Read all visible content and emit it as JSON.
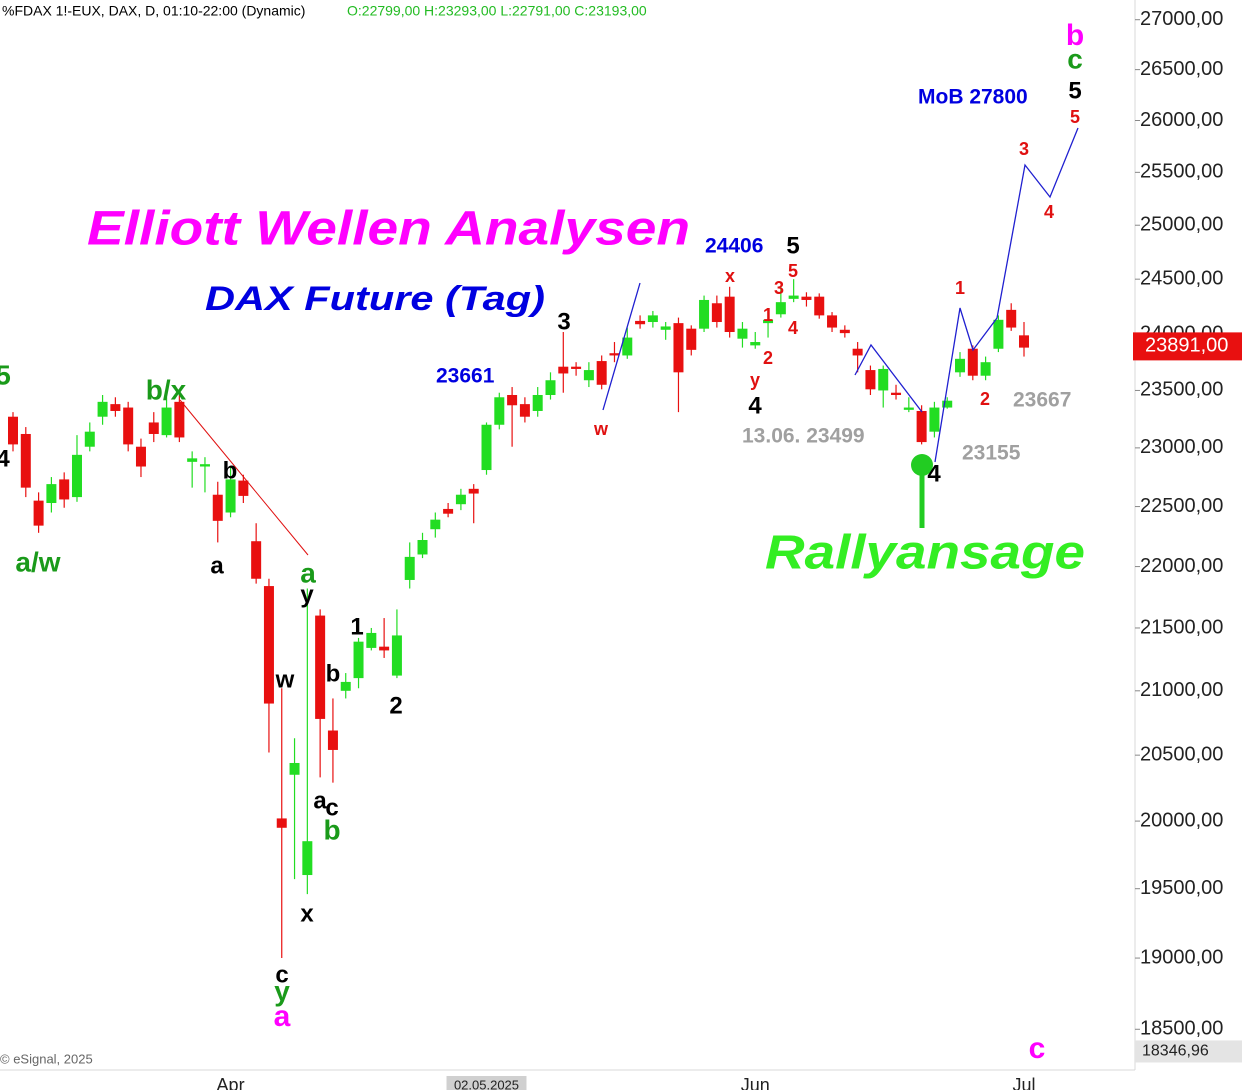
{
  "chart_data": {
    "type": "candlestick",
    "header": {
      "symbol": "%FDAX 1!-EUX, DAX, D, 01:10-22:00 (Dynamic)",
      "ohlc": "O:22799,00 H:23293,00 L:22791,00 C:23193,00"
    },
    "copyright": "© eSignal, 2025",
    "log_scale": true,
    "grid": false,
    "up_color": "#22dd22",
    "down_color": "#e81010",
    "ylim": [
      18220,
      27200
    ],
    "yticks": [
      {
        "value": 18500,
        "label": "18500,00"
      },
      {
        "value": 19000,
        "label": "19000,00"
      },
      {
        "value": 19500,
        "label": "19500,00"
      },
      {
        "value": 20000,
        "label": "20000,00"
      },
      {
        "value": 20500,
        "label": "20500,00"
      },
      {
        "value": 21000,
        "label": "21000,00"
      },
      {
        "value": 21500,
        "label": "21500,00"
      },
      {
        "value": 22000,
        "label": "22000,00"
      },
      {
        "value": 22500,
        "label": "22500,00"
      },
      {
        "value": 23000,
        "label": "23000,00"
      },
      {
        "value": 23500,
        "label": "23500,00"
      },
      {
        "value": 24000,
        "label": "24000,00"
      },
      {
        "value": 24500,
        "label": "24500,00"
      },
      {
        "value": 25000,
        "label": "25000,00"
      },
      {
        "value": 25500,
        "label": "25500,00"
      },
      {
        "value": 26000,
        "label": "26000,00"
      },
      {
        "value": 26500,
        "label": "26500,00"
      },
      {
        "value": 27000,
        "label": "27000,00"
      }
    ],
    "last_price": {
      "value": 23891,
      "label": "23891,00"
    },
    "cursor_price": {
      "value": 18346.96,
      "label": "18346,96"
    },
    "categories": [
      null,
      null,
      null,
      null,
      null,
      null,
      null,
      null,
      null,
      null,
      null,
      null,
      null,
      null,
      null,
      null,
      null,
      "Apr",
      null,
      null,
      null,
      null,
      null,
      null,
      null,
      null,
      null,
      null,
      null,
      null,
      null,
      null,
      null,
      null,
      null,
      null,
      null,
      "02.05.2025",
      null,
      null,
      null,
      null,
      null,
      null,
      null,
      null,
      null,
      null,
      null,
      null,
      null,
      null,
      null,
      null,
      null,
      null,
      null,
      null,
      "Jun",
      null,
      null,
      null,
      null,
      null,
      null,
      null,
      null,
      null,
      null,
      null,
      null,
      null,
      null,
      null,
      null,
      null,
      null,
      null,
      null,
      "Jul"
    ],
    "open": [
      23270,
      23120,
      22550,
      22530,
      22730,
      22580,
      23010,
      23270,
      23380,
      23350,
      23010,
      23220,
      23110,
      23400,
      22880,
      22840,
      22600,
      22450,
      22720,
      22210,
      21840,
      20020,
      20350,
      19600,
      21600,
      20690,
      21000,
      21100,
      21340,
      21350,
      21120,
      21890,
      22100,
      22310,
      22480,
      22520,
      22650,
      22810,
      23200,
      23460,
      23380,
      23320,
      23460,
      23710,
      23710,
      23590,
      23760,
      23830,
      23810,
      24120,
      24110,
      24040,
      24100,
      24050,
      24050,
      24280,
      24340,
      23960,
      23900,
      24100,
      24180,
      24320,
      24340,
      24340,
      24170,
      24040,
      23870,
      23680,
      23500,
      23480,
      23330,
      23320,
      23140,
      23350,
      23660,
      23870,
      23630,
      23870,
      24220,
      23990
    ],
    "high": [
      23310,
      23180,
      22620,
      22750,
      22790,
      23110,
      23220,
      23460,
      23440,
      23400,
      23080,
      23310,
      23440,
      23460,
      22970,
      22920,
      22710,
      22840,
      22770,
      22360,
      21900,
      21020,
      20630,
      21820,
      21650,
      20940,
      21140,
      21420,
      21500,
      21580,
      21650,
      22200,
      22280,
      22450,
      22530,
      22650,
      22690,
      23220,
      23480,
      23530,
      23440,
      23530,
      23660,
      24020,
      23750,
      23750,
      23810,
      23930,
      24060,
      24170,
      24210,
      24110,
      24150,
      24080,
      24350,
      24350,
      24430,
      24110,
      24020,
      24200,
      24430,
      24500,
      24380,
      24370,
      24200,
      24080,
      23930,
      23720,
      23720,
      23550,
      23440,
      23370,
      23400,
      23440,
      23840,
      23900,
      23800,
      24170,
      24280,
      24110
    ],
    "low": [
      22970,
      22580,
      22280,
      22450,
      22490,
      22540,
      22970,
      23200,
      23270,
      22970,
      22750,
      23050,
      23090,
      23050,
      22660,
      22620,
      22200,
      22410,
      22530,
      21860,
      20520,
      19000,
      19570,
      19460,
      20330,
      20290,
      20940,
      21020,
      21320,
      21260,
      21100,
      21820,
      22070,
      22240,
      22410,
      22470,
      22360,
      22770,
      23160,
      23010,
      23220,
      23270,
      23420,
      23480,
      23630,
      23530,
      23510,
      23750,
      23780,
      24050,
      24060,
      23950,
      23310,
      23810,
      24020,
      24060,
      23970,
      23880,
      23870,
      23970,
      24150,
      24290,
      24250,
      24140,
      24020,
      23970,
      23660,
      23460,
      23350,
      23420,
      23310,
      23030,
      23090,
      23340,
      23620,
      23590,
      23590,
      23840,
      24030,
      23800
    ],
    "close": [
      23030,
      22660,
      22340,
      22690,
      22560,
      22940,
      23140,
      23400,
      23320,
      23030,
      22840,
      23120,
      23350,
      23090,
      22910,
      22860,
      22380,
      22730,
      22590,
      21900,
      20900,
      19950,
      20440,
      19850,
      20780,
      20540,
      21070,
      21390,
      21460,
      21320,
      21440,
      22080,
      22220,
      22390,
      22440,
      22600,
      22610,
      23200,
      23440,
      23370,
      23270,
      23460,
      23590,
      23650,
      23690,
      23680,
      23550,
      23810,
      23970,
      24090,
      24170,
      24070,
      23660,
      23860,
      24310,
      24110,
      24020,
      24050,
      23930,
      24130,
      24290,
      24350,
      24310,
      24170,
      24060,
      24010,
      23810,
      23510,
      23690,
      23460,
      23350,
      23050,
      23350,
      23410,
      23780,
      23630,
      23750,
      24130,
      24060,
      23880
    ],
    "annotations": [
      "Elliott Wellen Analysen",
      "DAX Future (Tag)",
      "Rallyansage",
      "MoB 27800",
      "24406",
      "23661",
      "13.06. 23499",
      "23155",
      "23667",
      "5",
      "3",
      "4",
      "4",
      "5",
      "1",
      "2",
      "b",
      "a",
      "y",
      "w",
      "b",
      "a",
      "c",
      "x",
      "c",
      "4",
      "b/x",
      "a/w",
      "a",
      "b",
      "y",
      "c",
      "5",
      "b",
      "a",
      "c",
      "x",
      "5",
      "3",
      "1",
      "4",
      "2",
      "y",
      "w",
      "1",
      "2",
      "3",
      "4",
      "5"
    ]
  }
}
